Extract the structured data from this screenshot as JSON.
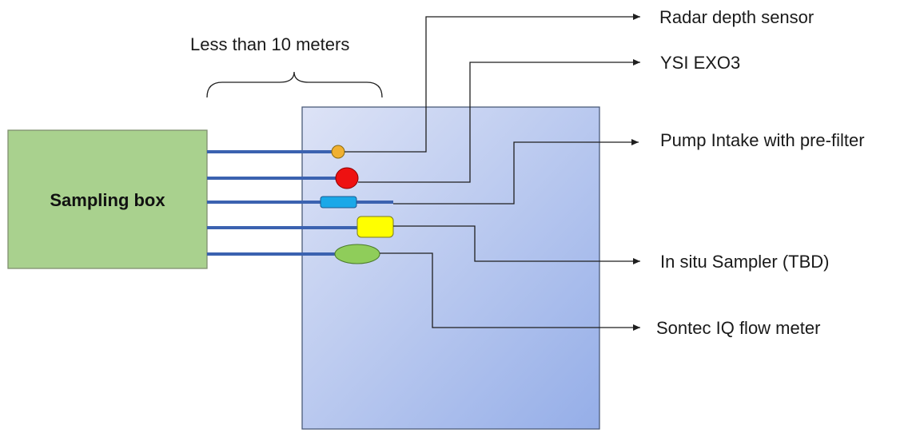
{
  "distance_label": "Less than 10 meters",
  "sampling_box": {
    "label": "Sampling box",
    "fill": "#a9d18e",
    "stroke": "#7f8f6f"
  },
  "water_area": {
    "fill_start": "#dde3f6",
    "fill_end": "#95aee8",
    "stroke": "#4a5a78"
  },
  "pipe_color": "#3b62b0",
  "devices": [
    {
      "label": "Radar depth sensor",
      "shape": "small-circle",
      "color": "#f0b030"
    },
    {
      "label": "YSI EXO3",
      "shape": "circle",
      "color": "#ee1111"
    },
    {
      "label": "Pump Intake with pre-filter",
      "shape": "rounded-rect",
      "color": "#1aa8e8"
    },
    {
      "label": "In situ Sampler (TBD)",
      "shape": "rounded-square",
      "color": "#ffff00"
    },
    {
      "label": "Sontec IQ flow meter",
      "shape": "ellipse",
      "color": "#8fcd5a"
    }
  ]
}
